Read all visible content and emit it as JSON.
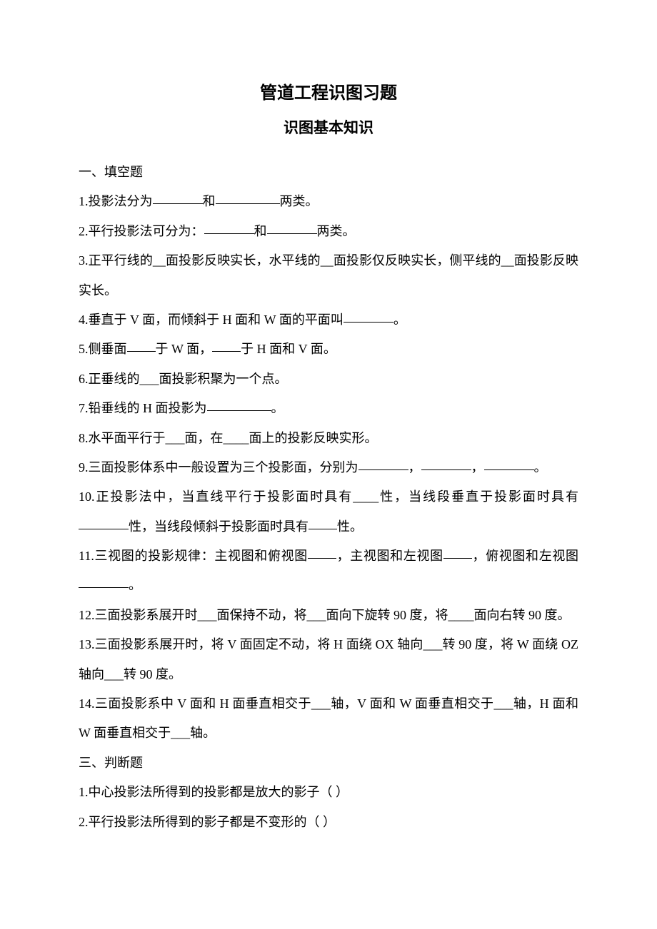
{
  "title": "管道工程识图习题",
  "subtitle": "识图基本知识",
  "section1": {
    "heading": "一、填空题",
    "q1_a": "1.投影法分为",
    "q1_b": "和",
    "q1_c": "两类。",
    "q2_a": "2.平行投影法可分为：",
    "q2_b": "和",
    "q2_c": "两类。",
    "q3": "3.正平行线的__面投影反映实长，水平线的__面投影仅反映实长，侧平线的__面投影反映实长。",
    "q4_a": "4.垂直于 V 面，而倾斜于 H 面和 W 面的平面叫",
    "q4_b": "。",
    "q5_a": "5.侧垂面",
    "q5_b": "于 W 面，",
    "q5_c": "于 H 面和 V 面。",
    "q6": "6.正垂线的___面投影积聚为一个点。",
    "q7_a": "7.铅垂线的 H 面投影为",
    "q7_b": "。",
    "q8": "8.水平面平行于___面，在____面上的投影反映实形。",
    "q9_a": "9.三面投影体系中一般设置为三个投影面，分别为",
    "q9_b": "，",
    "q9_c": "，",
    "q9_d": "。",
    "q10_a": "10.正投影法中，当直线平行于投影面时具有____性，当线段垂直于投影面时具有",
    "q10_b": "性，当线段倾斜于投影面时具有",
    "q10_c": "性。",
    "q11_a": "11.三视图的投影规律：主视图和俯视图",
    "q11_b": "，主视图和左视图",
    "q11_c": "，俯视图和左视图",
    "q11_d": "。",
    "q12": "12.三面投影系展开时___面保持不动，将___面向下旋转 90 度，将____面向右转 90 度。",
    "q13": "13.三面投影系展开时，将 V 面固定不动，将 H 面绕 OX 轴向___转 90 度，将 W 面绕 OZ 轴向___转 90 度。",
    "q14": "14.三面投影系中 V 面和 H 面垂直相交于___轴，V 面和 W 面垂直相交于___轴，H 面和 W 面垂直相交于___轴。"
  },
  "section3": {
    "heading": "三、判断题",
    "q1": "1.中心投影法所得到的投影都是放大的影子（  ）",
    "q2": "2.平行投影法所得到的影子都是不变形的（  ）"
  }
}
